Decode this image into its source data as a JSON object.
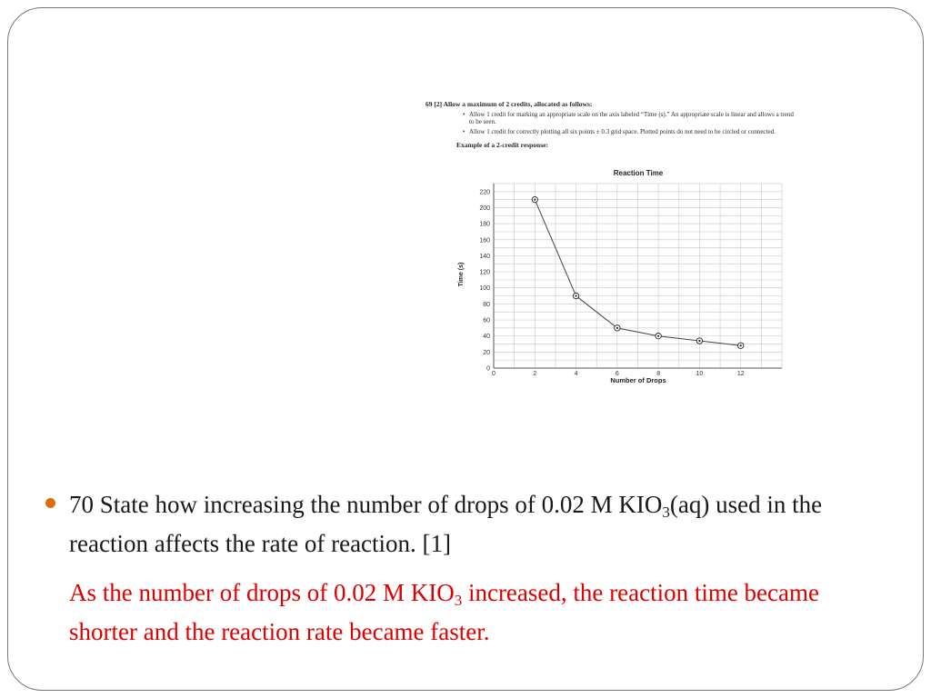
{
  "rubric": {
    "header": "69  [2]  Allow a maximum of 2 credits, allocated as follows:",
    "bullet1": "Allow 1 credit for marking an appropriate scale on the axis labeled “Time (s).” An appropriate scale is linear and allows a trend to be seen.",
    "bullet2": "Allow 1 credit for correctly plotting all six points ± 0.3 grid space. Plotted points do not need to be circled or connected.",
    "example": "Example of a 2-credit response:"
  },
  "chart_data": {
    "type": "line",
    "title": "Reaction Time",
    "xlabel": "Number of Drops",
    "ylabel": "Time (s)",
    "x": [
      2,
      4,
      6,
      8,
      10,
      12
    ],
    "y": [
      210,
      90,
      50,
      40,
      34,
      28
    ],
    "xlim": [
      0,
      14
    ],
    "ylim": [
      0,
      230
    ],
    "xticks": [
      0,
      2,
      4,
      6,
      8,
      10,
      12
    ],
    "yticks": [
      0,
      20,
      40,
      60,
      80,
      100,
      120,
      140,
      160,
      180,
      200,
      220
    ],
    "grid": true,
    "markers": "circled-dot",
    "line_color": "#444444"
  },
  "question": {
    "text_before_sub": "70 State how increasing the number of drops of 0.02 M KIO",
    "sub": "3",
    "text_after_sub": "(aq) used in the reaction affects the rate of reaction. [1]"
  },
  "answer": {
    "text_before_sub": "As the number of drops of 0.02 M KIO",
    "sub": "3",
    "text_after_sub": " increased, the reaction time became shorter and the reaction rate became faster."
  },
  "colors": {
    "answer": "#e00000",
    "bullet": "#e36c0a",
    "frame": "#777777"
  }
}
